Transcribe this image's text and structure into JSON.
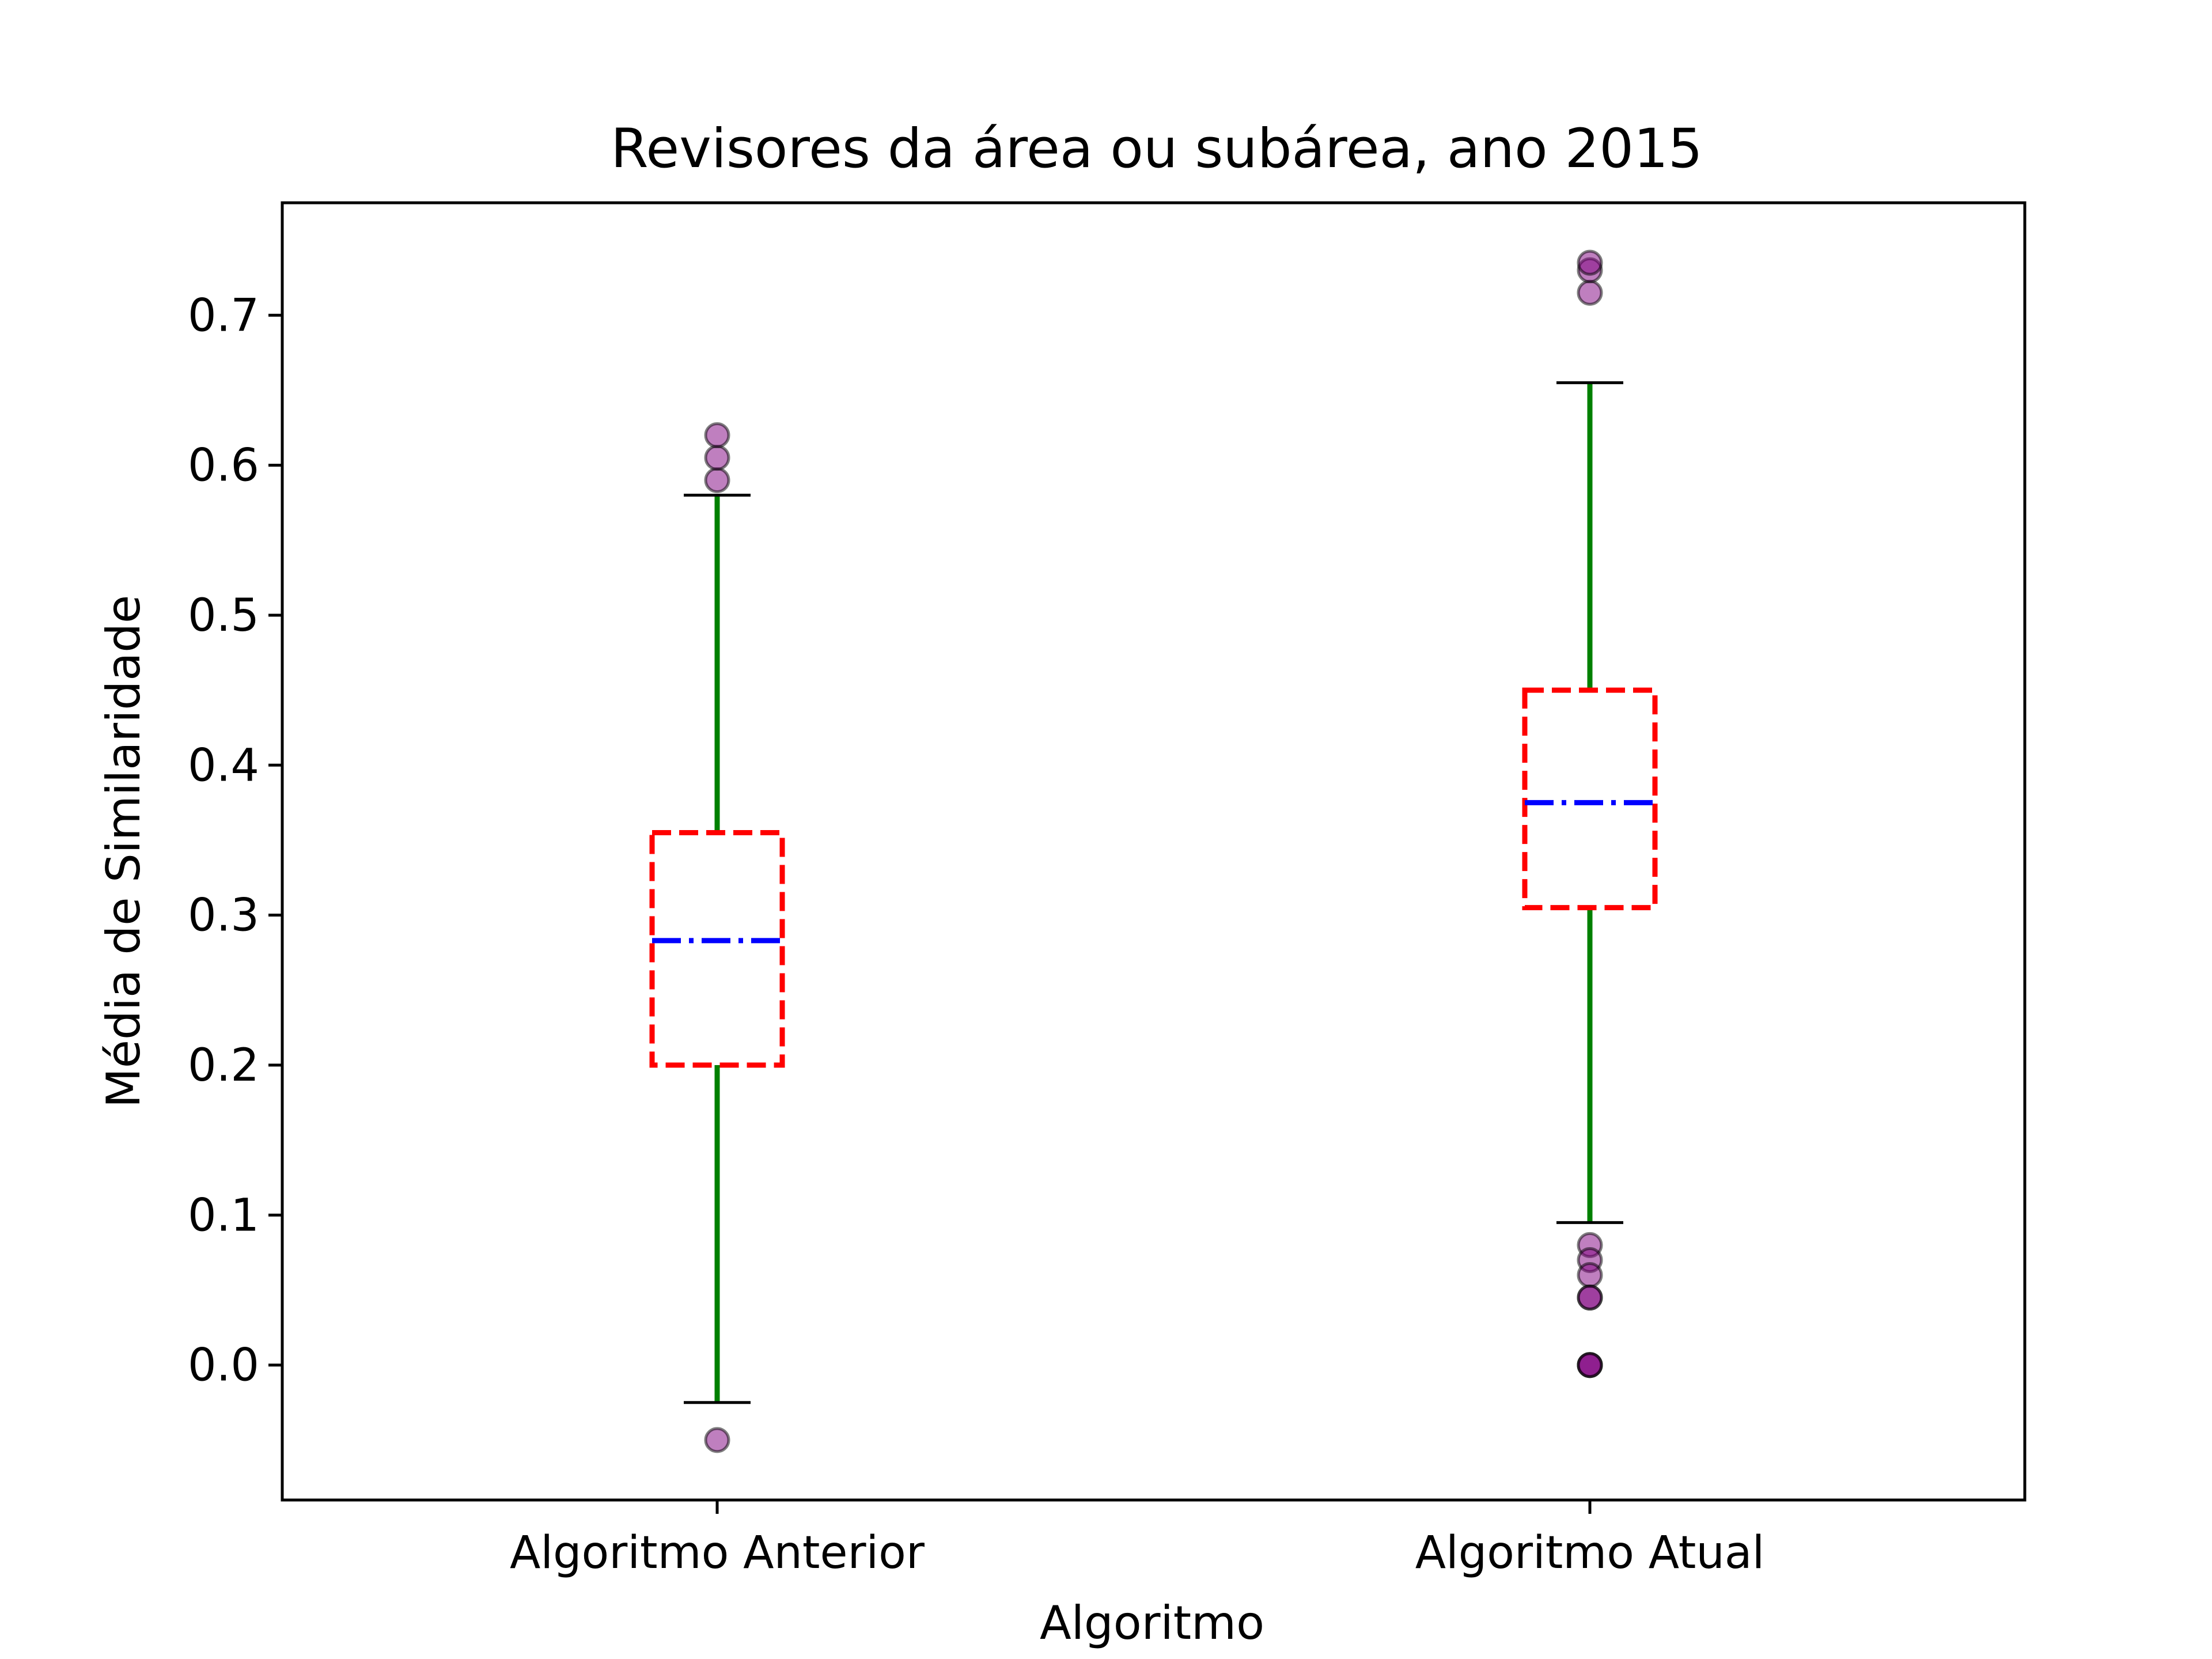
{
  "chart_data": {
    "type": "box",
    "title": "Revisores da área ou subárea, ano 2015",
    "xlabel": "Algoritmo",
    "ylabel": "Média de Similaridade",
    "ylim": [
      -0.09,
      0.775
    ],
    "yticks": [
      0.0,
      0.1,
      0.2,
      0.3,
      0.4,
      0.5,
      0.6,
      0.7
    ],
    "ytick_labels": [
      "0.0",
      "0.1",
      "0.2",
      "0.3",
      "0.4",
      "0.5",
      "0.6",
      "0.7"
    ],
    "categories": [
      "Algoritmo Anterior",
      "Algoritmo Atual"
    ],
    "boxes": [
      {
        "category": "Algoritmo Anterior",
        "whisker_low": -0.025,
        "q1": 0.2,
        "median": 0.283,
        "q3": 0.355,
        "whisker_high": 0.58,
        "outliers": [
          0.59,
          0.605,
          0.62,
          -0.05
        ]
      },
      {
        "category": "Algoritmo Atual",
        "whisker_low": 0.095,
        "q1": 0.305,
        "median": 0.375,
        "q3": 0.45,
        "whisker_high": 0.655,
        "outliers": [
          0.715,
          0.73,
          0.735,
          0.08,
          0.07,
          0.06,
          0.045,
          0.045,
          0.0,
          0.0,
          0.0
        ]
      }
    ],
    "grid": false,
    "colors": {
      "box": "#ff0000",
      "median": "#0000ff",
      "whisker": "#008000",
      "cap": "#000000",
      "outlier_fill": "#800080",
      "outlier_edge": "#000000",
      "axes": "#000000"
    }
  }
}
